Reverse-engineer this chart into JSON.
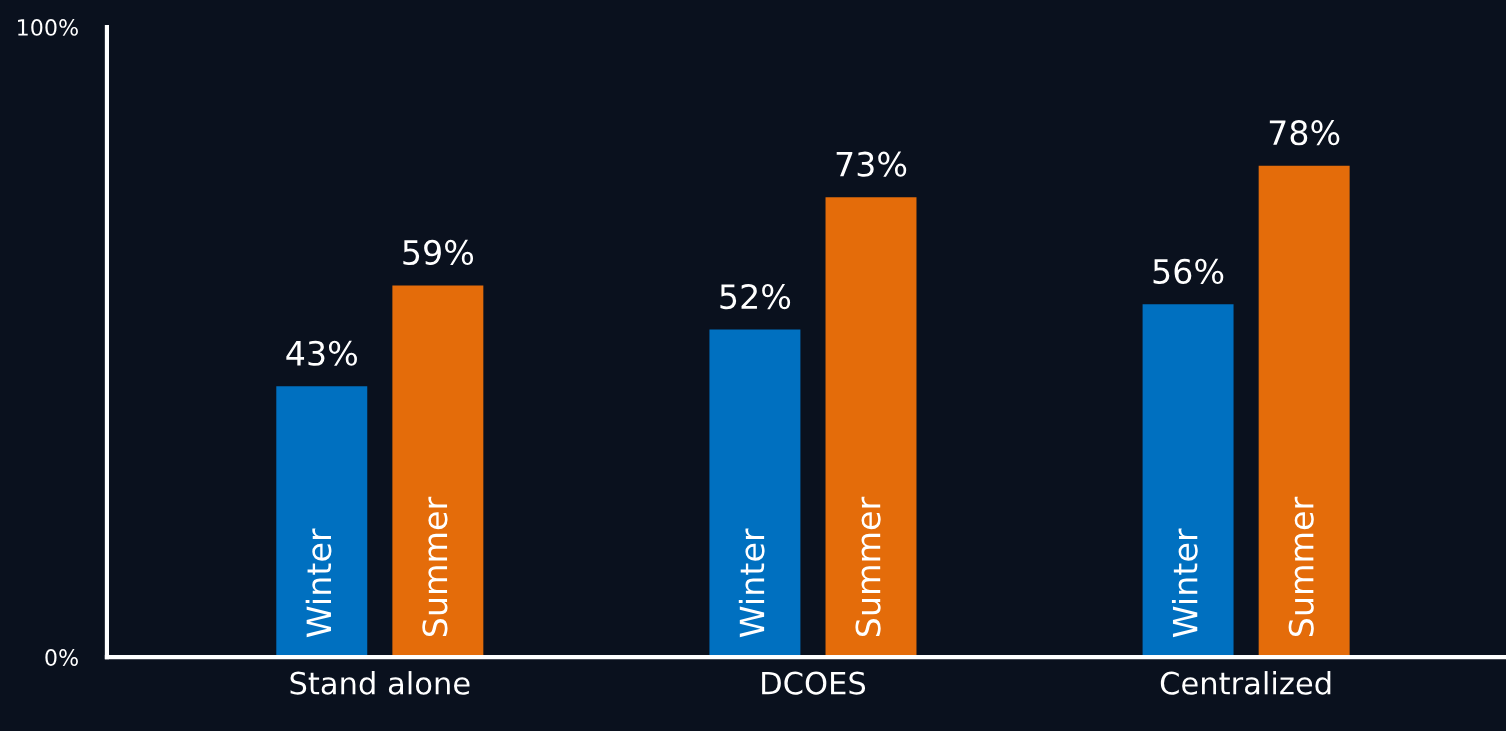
{
  "chart_data": {
    "type": "bar",
    "categories": [
      "Stand alone",
      "DCOES",
      "Centralized"
    ],
    "series": [
      {
        "name": "Winter",
        "color": "#0070c0",
        "values": [
          43,
          52,
          56
        ],
        "value_labels": [
          "43%",
          "52%",
          "56%"
        ]
      },
      {
        "name": "Summer",
        "color": "#e46c0a",
        "values": [
          59,
          73,
          78
        ],
        "value_labels": [
          "59%",
          "73%",
          "78%"
        ]
      }
    ],
    "ylim": [
      0,
      100
    ],
    "yticks": [
      {
        "value": 0,
        "label": "0%"
      },
      {
        "value": 100,
        "label": "100%"
      }
    ],
    "grid": false,
    "legend": false
  }
}
